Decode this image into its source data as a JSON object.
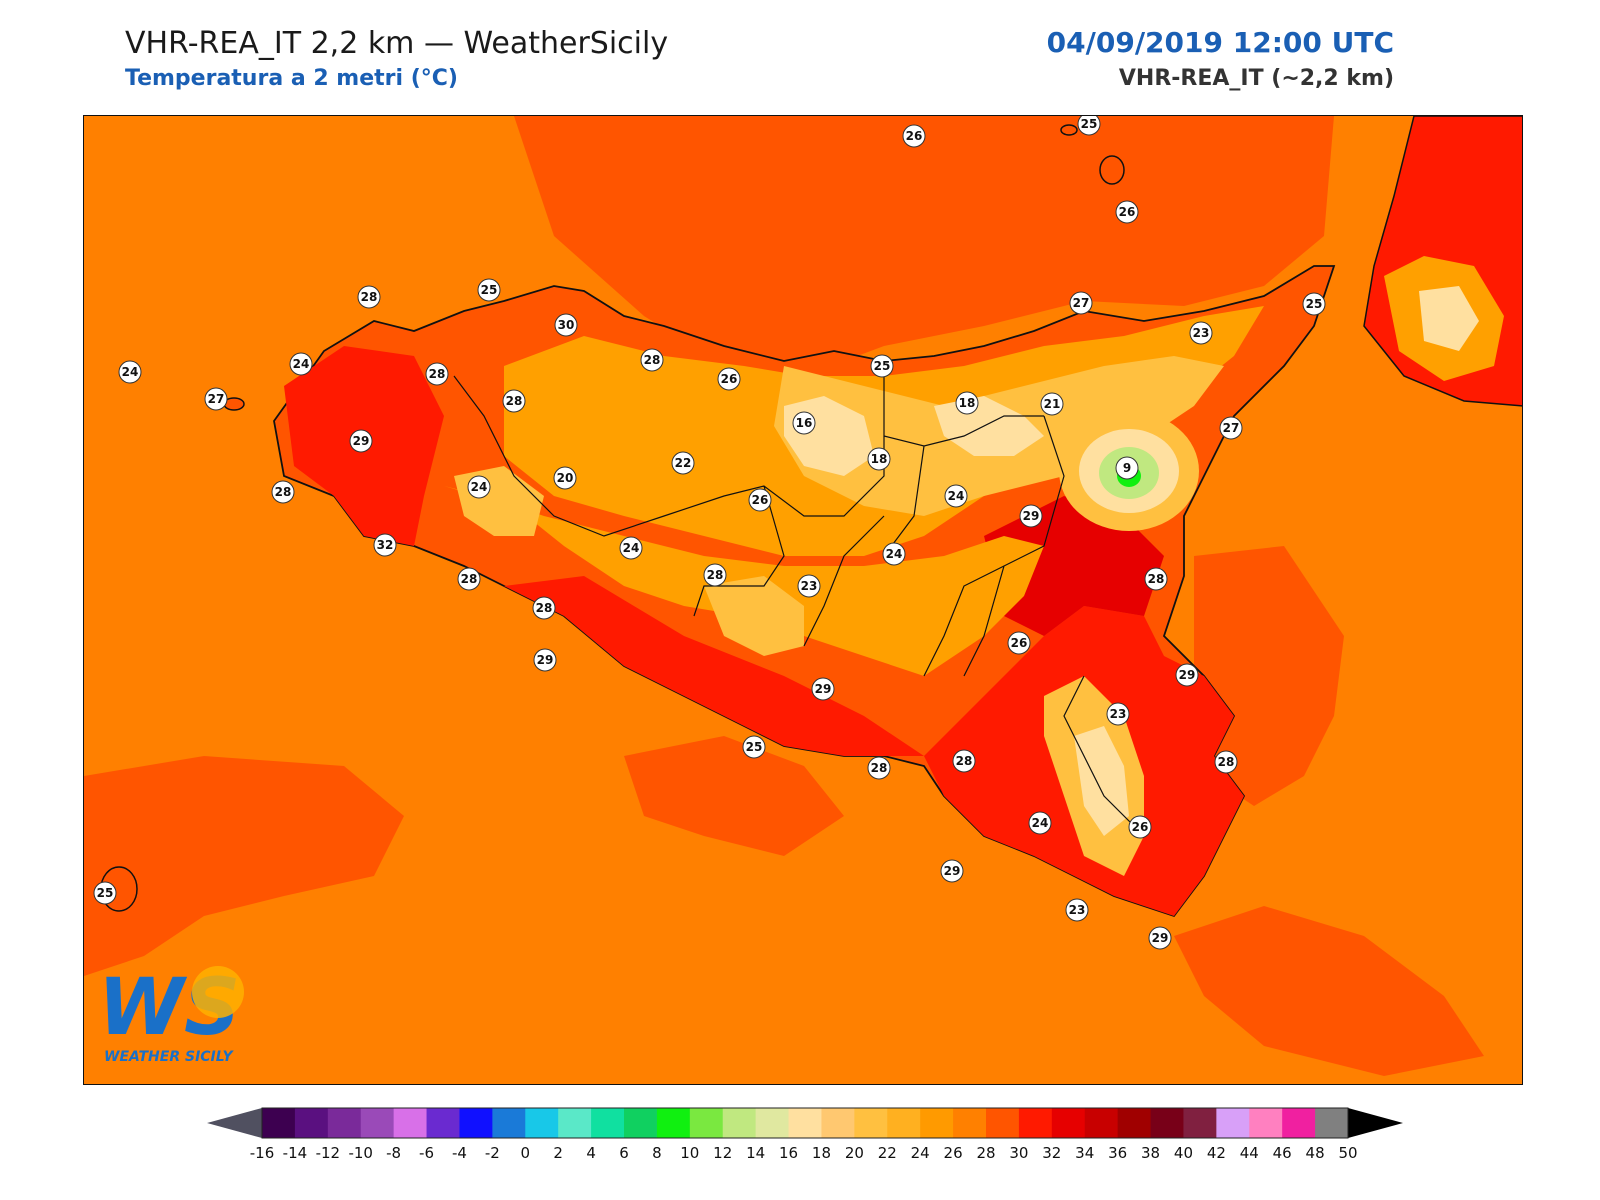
{
  "header": {
    "title": "VHR-REA_IT 2,2 km — WeatherSicily",
    "subtitle": "Temperatura a 2 metri (°C)",
    "datetime": "04/09/2019 12:00 UTC",
    "model": "VHR-REA_IT (~2,2 km)"
  },
  "logo": {
    "letters": "WS",
    "text": "WEATHER SICILY"
  },
  "colors": {
    "sea": "#ff8000",
    "sea_warm": "#ff5500",
    "land_hot": "#ff1a00",
    "land_very_hot": "#e60000",
    "land_mid": "#ffa000",
    "land_cool": "#ffc040",
    "land_cooler": "#ffe0a0",
    "etna_peak": "#5fe85f",
    "coast": "#111111"
  },
  "map": {
    "station_labels": [
      {
        "v": "26",
        "id": "s1"
      },
      {
        "v": "25",
        "id": "s2"
      },
      {
        "v": "26",
        "id": "s3"
      },
      {
        "v": "28",
        "id": "s4"
      },
      {
        "v": "25",
        "id": "s5"
      },
      {
        "v": "30",
        "id": "s6"
      },
      {
        "v": "27",
        "id": "s7"
      },
      {
        "v": "25",
        "id": "s8"
      },
      {
        "v": "23",
        "id": "s9"
      },
      {
        "v": "24",
        "id": "s10"
      },
      {
        "v": "24",
        "id": "s11"
      },
      {
        "v": "28",
        "id": "s12"
      },
      {
        "v": "28",
        "id": "s13"
      },
      {
        "v": "26",
        "id": "s14"
      },
      {
        "v": "25",
        "id": "s15"
      },
      {
        "v": "27",
        "id": "s16"
      },
      {
        "v": "28",
        "id": "s17"
      },
      {
        "v": "18",
        "id": "s18"
      },
      {
        "v": "21",
        "id": "s19"
      },
      {
        "v": "29",
        "id": "s20"
      },
      {
        "v": "16",
        "id": "s21"
      },
      {
        "v": "27",
        "id": "s22"
      },
      {
        "v": "22",
        "id": "s23"
      },
      {
        "v": "18",
        "id": "s24"
      },
      {
        "v": "9",
        "id": "s25"
      },
      {
        "v": "28",
        "id": "s26"
      },
      {
        "v": "20",
        "id": "s27"
      },
      {
        "v": "24",
        "id": "s28"
      },
      {
        "v": "26",
        "id": "s29"
      },
      {
        "v": "24",
        "id": "s30"
      },
      {
        "v": "29",
        "id": "s31"
      },
      {
        "v": "32",
        "id": "s32"
      },
      {
        "v": "24",
        "id": "s33"
      },
      {
        "v": "24",
        "id": "s34"
      },
      {
        "v": "28",
        "id": "s35"
      },
      {
        "v": "28",
        "id": "s36"
      },
      {
        "v": "23",
        "id": "s37"
      },
      {
        "v": "28",
        "id": "s38"
      },
      {
        "v": "26",
        "id": "s39"
      },
      {
        "v": "29",
        "id": "s40"
      },
      {
        "v": "29",
        "id": "s41"
      },
      {
        "v": "28",
        "id": "s42"
      },
      {
        "v": "29",
        "id": "s43"
      },
      {
        "v": "23",
        "id": "s44"
      },
      {
        "v": "25",
        "id": "s45"
      },
      {
        "v": "28",
        "id": "s46"
      },
      {
        "v": "28",
        "id": "s47"
      },
      {
        "v": "28",
        "id": "s48"
      },
      {
        "v": "24",
        "id": "s49"
      },
      {
        "v": "26",
        "id": "s50"
      },
      {
        "v": "29",
        "id": "s51"
      },
      {
        "v": "23",
        "id": "s52"
      },
      {
        "v": "29",
        "id": "s53"
      },
      {
        "v": "25",
        "id": "s54"
      }
    ]
  },
  "colorbar": {
    "ticks": [
      "-16",
      "-14",
      "-12",
      "-10",
      "-8",
      "-6",
      "-4",
      "-2",
      "0",
      "2",
      "4",
      "6",
      "8",
      "10",
      "12",
      "14",
      "16",
      "18",
      "20",
      "22",
      "24",
      "26",
      "28",
      "30",
      "32",
      "34",
      "36",
      "38",
      "40",
      "42",
      "44",
      "46",
      "48",
      "50"
    ],
    "colors": [
      "#3d0050",
      "#5a1080",
      "#7a2a9a",
      "#9a4ab8",
      "#d870e8",
      "#6a2ad0",
      "#1010ff",
      "#1a7ad8",
      "#18c8e8",
      "#5ae8c8",
      "#10e0a0",
      "#10d060",
      "#10f010",
      "#7ae840",
      "#c0e880",
      "#e0e8a0",
      "#ffe0a0",
      "#ffc870",
      "#ffc040",
      "#ffb020",
      "#ff9a00",
      "#ff8000",
      "#ff5500",
      "#ff1a00",
      "#e60000",
      "#c80000",
      "#a00000",
      "#780018",
      "#802040",
      "#d8a0f8",
      "#ff80c0",
      "#f020a0",
      "#808080",
      "#404040"
    ],
    "under_color": "#505060",
    "over_color": "#000000"
  }
}
